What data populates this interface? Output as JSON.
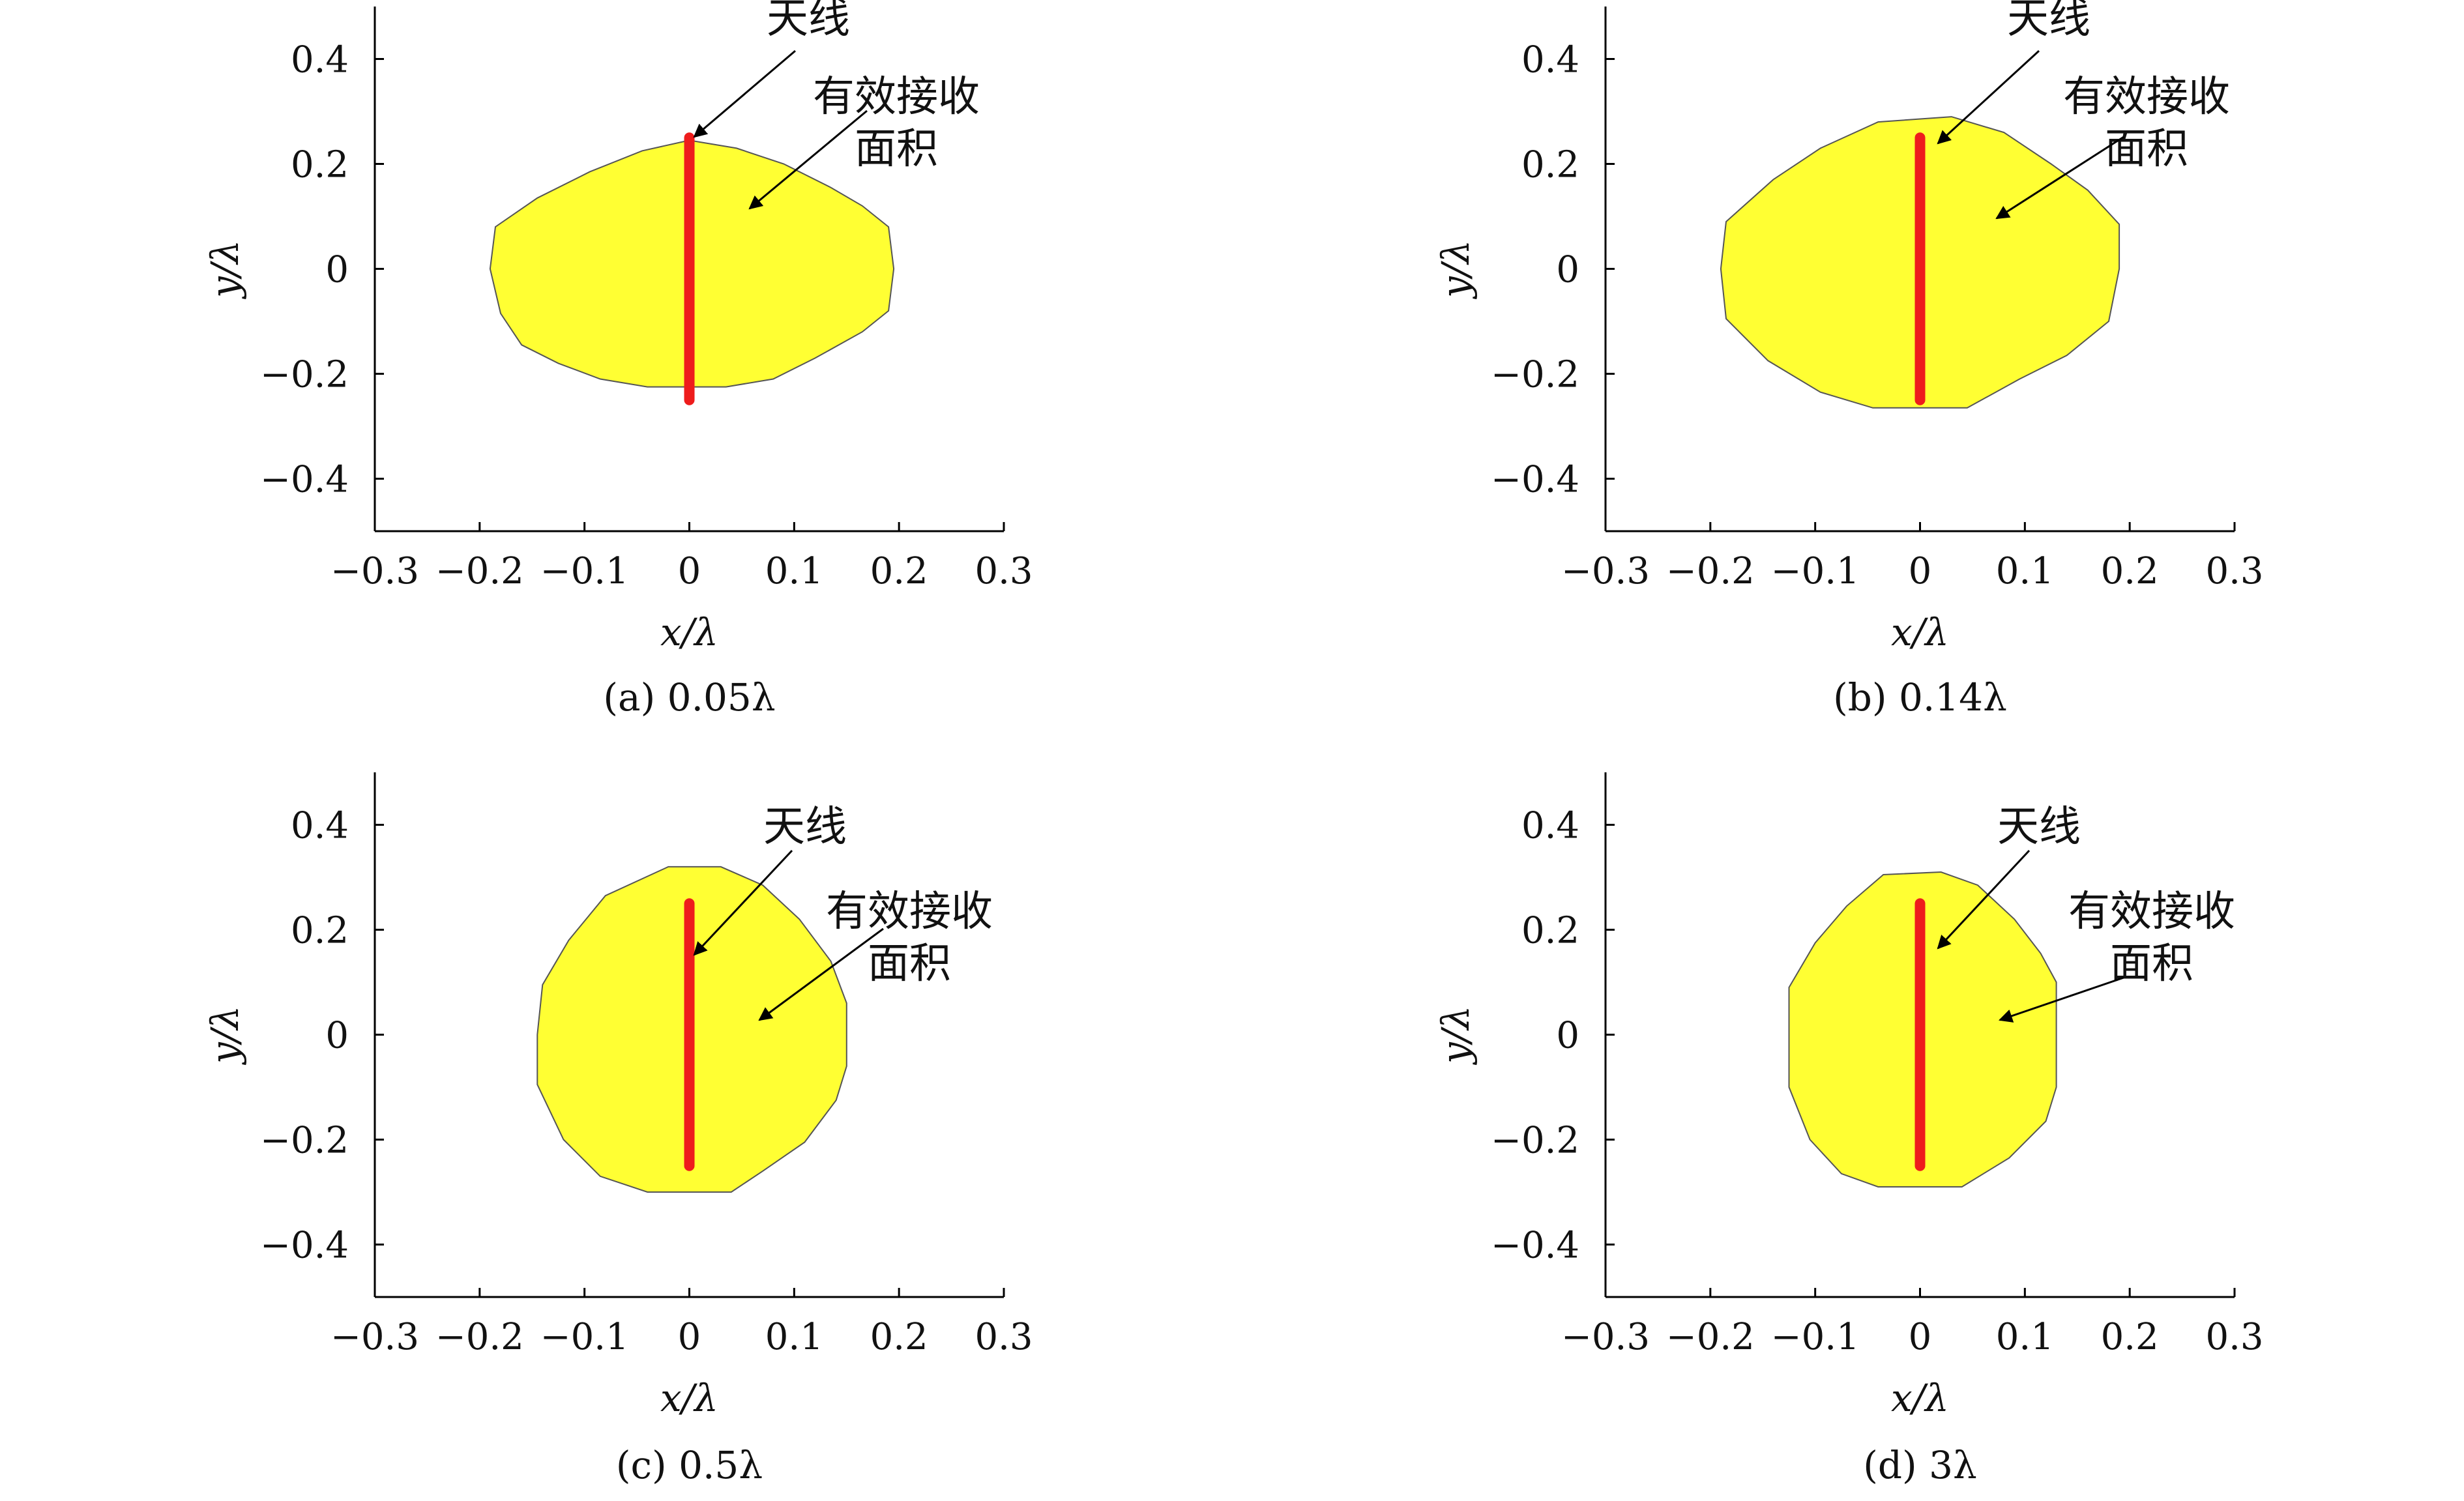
{
  "annotation_color_fill": "#FFFF33",
  "annotation_color_antenna": "#EE1C1C",
  "chart_data": [
    {
      "type": "area",
      "caption": "(a) 0.05λ",
      "xlabel": "x/λ",
      "ylabel": "y/λ",
      "xlim": [
        -0.3,
        0.3
      ],
      "ylim": [
        -0.5,
        0.5
      ],
      "xticks": [
        "−0.3",
        "−0.2",
        "−0.1",
        "0",
        "0.1",
        "0.2",
        "0.3"
      ],
      "yticks": [
        "0.4",
        "0.2",
        "0",
        "−0.2",
        "−0.4"
      ],
      "antenna": {
        "x": 0,
        "y": [
          -0.25,
          0.25
        ]
      },
      "region": [
        [
          -0.19,
          0
        ],
        [
          -0.185,
          0.08
        ],
        [
          -0.145,
          0.135
        ],
        [
          -0.095,
          0.185
        ],
        [
          -0.045,
          0.225
        ],
        [
          0.0,
          0.245
        ],
        [
          0.045,
          0.23
        ],
        [
          0.09,
          0.2
        ],
        [
          0.135,
          0.155
        ],
        [
          0.165,
          0.12
        ],
        [
          0.19,
          0.08
        ],
        [
          0.195,
          0.0
        ],
        [
          0.19,
          -0.08
        ],
        [
          0.165,
          -0.12
        ],
        [
          0.12,
          -0.17
        ],
        [
          0.08,
          -0.21
        ],
        [
          0.035,
          -0.225
        ],
        [
          -0.04,
          -0.225
        ],
        [
          -0.085,
          -0.21
        ],
        [
          -0.125,
          -0.18
        ],
        [
          -0.16,
          -0.145
        ],
        [
          -0.18,
          -0.085
        ]
      ],
      "labels": {
        "antenna": "天线",
        "area_line1": "有效接收",
        "area_line2": "面积"
      }
    },
    {
      "type": "area",
      "caption": "(b) 0.14λ",
      "xlabel": "x/λ",
      "ylabel": "y/λ",
      "xlim": [
        -0.3,
        0.3
      ],
      "ylim": [
        -0.5,
        0.5
      ],
      "xticks": [
        "−0.3",
        "−0.2",
        "−0.1",
        "0",
        "0.1",
        "0.2",
        "0.3"
      ],
      "yticks": [
        "0.4",
        "0.2",
        "0",
        "−0.2",
        "−0.4"
      ],
      "antenna": {
        "x": 0,
        "y": [
          -0.25,
          0.25
        ]
      },
      "region": [
        [
          -0.19,
          0
        ],
        [
          -0.185,
          0.09
        ],
        [
          -0.14,
          0.17
        ],
        [
          -0.095,
          0.23
        ],
        [
          -0.04,
          0.28
        ],
        [
          0.03,
          0.29
        ],
        [
          0.08,
          0.26
        ],
        [
          0.125,
          0.2
        ],
        [
          0.16,
          0.15
        ],
        [
          0.19,
          0.085
        ],
        [
          0.19,
          0.0
        ],
        [
          0.18,
          -0.1
        ],
        [
          0.14,
          -0.165
        ],
        [
          0.095,
          -0.21
        ],
        [
          0.045,
          -0.265
        ],
        [
          -0.045,
          -0.265
        ],
        [
          -0.095,
          -0.235
        ],
        [
          -0.145,
          -0.175
        ],
        [
          -0.185,
          -0.095
        ]
      ],
      "labels": {
        "antenna": "天线",
        "area_line1": "有效接收",
        "area_line2": "面积"
      }
    },
    {
      "type": "area",
      "caption": "(c) 0.5λ",
      "xlabel": "x/λ",
      "ylabel": "y/λ",
      "xlim": [
        -0.3,
        0.3
      ],
      "ylim": [
        -0.5,
        0.5
      ],
      "xticks": [
        "−0.3",
        "−0.2",
        "−0.1",
        "0",
        "0.1",
        "0.2",
        "0.3"
      ],
      "yticks": [
        "0.4",
        "0.2",
        "0",
        "−0.2",
        "−0.4"
      ],
      "antenna": {
        "x": 0,
        "y": [
          -0.25,
          0.25
        ]
      },
      "region": [
        [
          -0.145,
          0
        ],
        [
          -0.14,
          0.095
        ],
        [
          -0.115,
          0.18
        ],
        [
          -0.08,
          0.265
        ],
        [
          -0.02,
          0.32
        ],
        [
          0.03,
          0.32
        ],
        [
          0.07,
          0.285
        ],
        [
          0.105,
          0.22
        ],
        [
          0.135,
          0.14
        ],
        [
          0.15,
          0.06
        ],
        [
          0.15,
          -0.06
        ],
        [
          0.14,
          -0.125
        ],
        [
          0.11,
          -0.205
        ],
        [
          0.07,
          -0.26
        ],
        [
          0.04,
          -0.3
        ],
        [
          -0.04,
          -0.3
        ],
        [
          -0.085,
          -0.27
        ],
        [
          -0.12,
          -0.2
        ],
        [
          -0.145,
          -0.095
        ]
      ],
      "labels": {
        "antenna": "天线",
        "area_line1": "有效接收",
        "area_line2": "面积"
      }
    },
    {
      "type": "area",
      "caption": "(d) 3λ",
      "xlabel": "x/λ",
      "ylabel": "y/λ",
      "xlim": [
        -0.3,
        0.3
      ],
      "ylim": [
        -0.5,
        0.5
      ],
      "xticks": [
        "−0.3",
        "−0.2",
        "−0.1",
        "0",
        "0.1",
        "0.2",
        "0.3"
      ],
      "yticks": [
        "0.4",
        "0.2",
        "0",
        "−0.2",
        "−0.4"
      ],
      "antenna": {
        "x": 0,
        "y": [
          -0.25,
          0.25
        ]
      },
      "region": [
        [
          -0.125,
          0
        ],
        [
          -0.125,
          0.09
        ],
        [
          -0.1,
          0.175
        ],
        [
          -0.07,
          0.245
        ],
        [
          -0.035,
          0.305
        ],
        [
          0.02,
          0.31
        ],
        [
          0.055,
          0.285
        ],
        [
          0.09,
          0.22
        ],
        [
          0.115,
          0.155
        ],
        [
          0.13,
          0.1
        ],
        [
          0.13,
          -0.1
        ],
        [
          0.12,
          -0.165
        ],
        [
          0.085,
          -0.235
        ],
        [
          0.04,
          -0.29
        ],
        [
          -0.04,
          -0.29
        ],
        [
          -0.075,
          -0.265
        ],
        [
          -0.105,
          -0.2
        ],
        [
          -0.125,
          -0.1
        ]
      ],
      "labels": {
        "antenna": "天线",
        "area_line1": "有效接收",
        "area_line2": "面积"
      }
    }
  ]
}
